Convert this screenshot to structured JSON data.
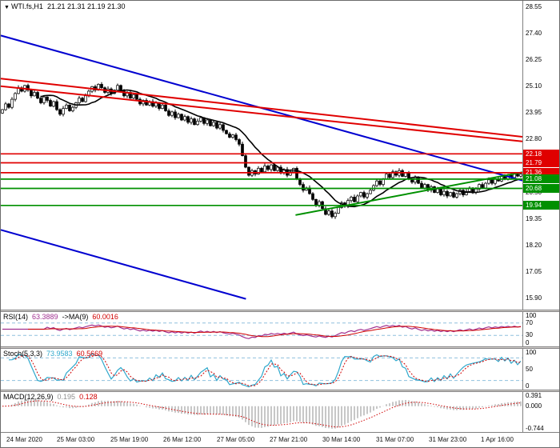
{
  "window": {
    "title_symbol": "WTI.fs,H1",
    "ohlc": "21.21 21.31 21.19 21.30",
    "marker_icon": "▼"
  },
  "chart_data": {
    "type": "candlestick",
    "title": "WTI.fs,H1 21.21 21.31 21.19 21.30",
    "symbol": "WTI.fs",
    "timeframe": "H1",
    "ohlc_display": {
      "open": "21.21",
      "high": "21.31",
      "low": "21.19",
      "close": "21.30"
    },
    "price_axis": {
      "min": 15.9,
      "max": 28.55,
      "plain_ticks": [
        28.55,
        27.4,
        26.25,
        25.1,
        23.95,
        22.8,
        20.5,
        19.35,
        18.2,
        17.05,
        15.9
      ]
    },
    "ma_period": 13,
    "closes": [
      24.1,
      24.35,
      24.2,
      24.55,
      24.8,
      25.05,
      24.9,
      25.15,
      24.95,
      24.7,
      24.85,
      24.6,
      24.4,
      24.65,
      24.5,
      24.25,
      24.45,
      24.1,
      23.9,
      24.15,
      24.3,
      24.05,
      24.2,
      24.4,
      24.6,
      24.45,
      24.7,
      24.9,
      25.1,
      24.95,
      25.2,
      25.05,
      24.85,
      25.0,
      24.8,
      24.95,
      25.15,
      24.9,
      24.7,
      24.85,
      24.6,
      24.75,
      24.55,
      24.35,
      24.5,
      24.3,
      24.45,
      24.25,
      24.4,
      24.15,
      24.3,
      24.05,
      23.85,
      24.0,
      23.75,
      23.9,
      23.65,
      23.8,
      23.55,
      23.7,
      23.45,
      23.6,
      23.75,
      23.5,
      23.65,
      23.4,
      23.55,
      23.3,
      23.45,
      23.2,
      23.05,
      22.9,
      23.0,
      22.8,
      22.6,
      22.1,
      21.6,
      21.25,
      21.45,
      21.3,
      21.55,
      21.4,
      21.65,
      21.5,
      21.7,
      21.45,
      21.6,
      21.35,
      21.5,
      21.25,
      21.4,
      21.55,
      21.1,
      20.85,
      20.6,
      20.7,
      20.45,
      20.2,
      19.95,
      20.1,
      19.8,
      19.55,
      19.7,
      19.45,
      19.6,
      19.85,
      20.05,
      19.9,
      20.15,
      20.3,
      20.1,
      20.35,
      20.5,
      20.3,
      20.45,
      20.6,
      20.8,
      21.0,
      20.85,
      21.1,
      21.3,
      21.15,
      21.4,
      21.25,
      21.45,
      21.2,
      21.35,
      21.1,
      20.95,
      21.15,
      20.9,
      20.7,
      20.85,
      20.6,
      20.75,
      20.5,
      20.65,
      20.4,
      20.55,
      20.35,
      20.5,
      20.3,
      20.45,
      20.6,
      20.4,
      20.55,
      20.7,
      20.5,
      20.65,
      20.85,
      20.7,
      20.9,
      21.05,
      20.9,
      21.1,
      21.0,
      21.2,
      21.1,
      21.25,
      21.15,
      21.3,
      21.21,
      21.3
    ],
    "levels": [
      {
        "price": 22.18,
        "label": "22.18",
        "type": "resistance",
        "color": "#e00000"
      },
      {
        "price": 21.79,
        "label": "21.79",
        "type": "resistance",
        "color": "#e00000"
      },
      {
        "price": 21.36,
        "label": "21.36",
        "type": "resistance",
        "color": "#e00000"
      },
      {
        "price": 21.08,
        "label": "21.08",
        "type": "support",
        "color": "#009000"
      },
      {
        "price": 20.68,
        "label": "20.68",
        "type": "support",
        "color": "#009000"
      },
      {
        "price": 19.94,
        "label": "19.94",
        "type": "support",
        "color": "#009000"
      }
    ],
    "trendlines": [
      {
        "name": "descending-channel-upper",
        "color": "#0000d0",
        "x1": 0.0,
        "p1": 27.32,
        "x2": 1.0,
        "p2": 21.02
      },
      {
        "name": "descending-channel-lower",
        "color": "#0000d0",
        "x1": 0.0,
        "p1": 18.88,
        "x2": 0.47,
        "p2": 15.88
      },
      {
        "name": "resistance-trend-1",
        "color": "#e00000",
        "x1": 0.0,
        "p1": 25.45,
        "x2": 1.0,
        "p2": 22.92
      },
      {
        "name": "resistance-trend-2",
        "color": "#e00000",
        "x1": 0.0,
        "p1": 25.12,
        "x2": 1.0,
        "p2": 22.72
      },
      {
        "name": "ascending-support",
        "color": "#009000",
        "x1": 0.565,
        "p1": 19.52,
        "x2": 1.0,
        "p2": 21.38
      }
    ],
    "time_labels": [
      {
        "text": "24 Mar 2020",
        "pos": 0.01
      },
      {
        "text": "25 Mar 03:00",
        "pos": 0.108
      },
      {
        "text": "25 Mar 19:00",
        "pos": 0.21
      },
      {
        "text": "26 Mar 12:00",
        "pos": 0.312
      },
      {
        "text": "27 Mar 05:00",
        "pos": 0.414
      },
      {
        "text": "27 Mar 21:00",
        "pos": 0.515
      },
      {
        "text": "30 Mar 14:00",
        "pos": 0.617
      },
      {
        "text": "31 Mar 07:00",
        "pos": 0.719
      },
      {
        "text": "31 Mar 23:00",
        "pos": 0.82
      },
      {
        "text": "1 Apr 16:00",
        "pos": 0.921
      }
    ],
    "indicators": {
      "rsi": {
        "name": "RSI(14)",
        "value": "63.3889",
        "ma_label": "->MA(9)",
        "ma_value": "60.0016",
        "color": "#a03090",
        "ma_color": "#d00000",
        "level_color": "#8fc0de",
        "levels": [
          70,
          30
        ],
        "axis": [
          "100",
          "70",
          "30",
          "0"
        ]
      },
      "stoch": {
        "name": "Stoch(5,3,3)",
        "value": "73.9583",
        "signal_value": "60.5669",
        "color": "#2fa8cc",
        "signal_color": "#d00000",
        "level_color": "#8fc0de",
        "levels": [
          80,
          20
        ],
        "axis": [
          "100",
          "50",
          "0"
        ]
      },
      "macd": {
        "name": "MACD(12,26,9)",
        "value": "0.195",
        "signal_value": "0.128",
        "hist_color": "#8f8f8f",
        "signal_color": "#d00000",
        "axis": [
          "0.391",
          "0.000",
          "-0.744"
        ],
        "range": [
          -0.744,
          0.391
        ]
      }
    }
  }
}
